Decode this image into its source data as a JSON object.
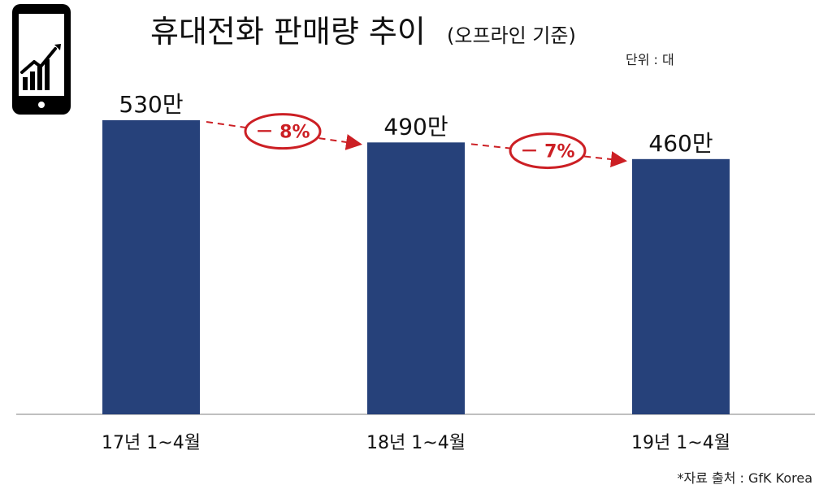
{
  "header": {
    "title": "휴대전화 판매량 추이",
    "subtitle": "(오프라인 기준)",
    "unit": "단위 : 대",
    "icon": "smartphone-growth-chart-icon"
  },
  "footer": {
    "source": "*자료 출처 : GfK Korea"
  },
  "chart_data": {
    "type": "bar",
    "title": "휴대전화 판매량 추이 (오프라인 기준)",
    "categories": [
      "17년 1~4월",
      "18년 1~4월",
      "19년 1~4월"
    ],
    "values": [
      5300000,
      4900000,
      4600000
    ],
    "value_labels": [
      "530만",
      "490만",
      "460만"
    ],
    "changes": [
      "－ 8%",
      "－ 7%"
    ],
    "unit": "단위 : 대",
    "xlabel": "",
    "ylabel": "",
    "ylim": [
      0,
      5300000
    ],
    "grid": false,
    "legend": "none",
    "colors": {
      "bar": "#26417a",
      "baseline": "#bfbfbf",
      "change": "#cc1f24",
      "icon": "#000000"
    }
  }
}
